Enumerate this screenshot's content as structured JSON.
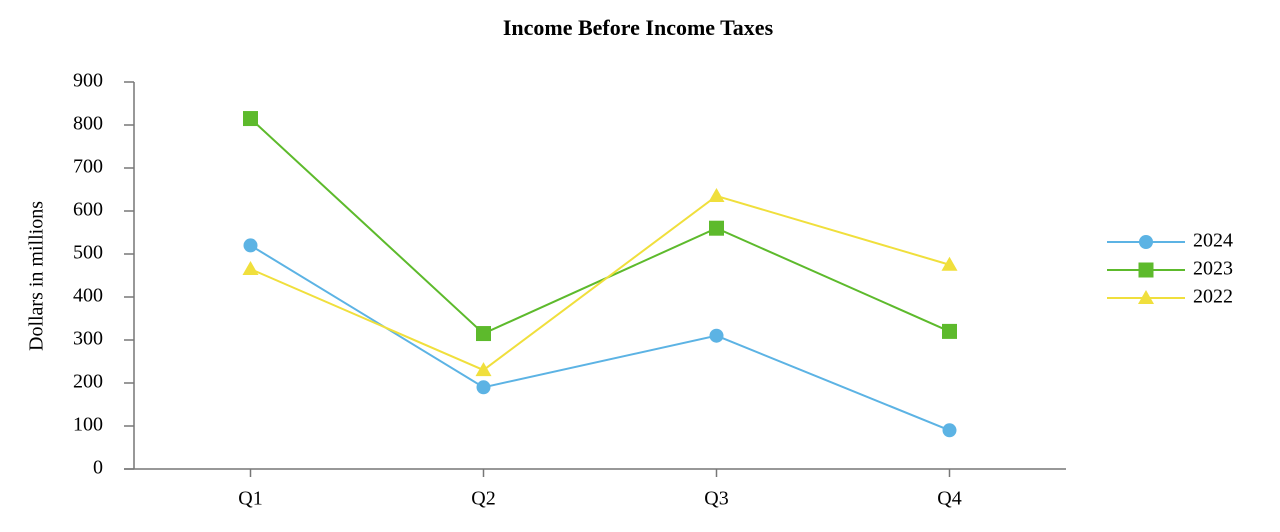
{
  "chart_data": {
    "type": "line",
    "title": "Income Before Income Taxes",
    "y_label": "Dollars in millions",
    "categories": [
      "Q1",
      "Q2",
      "Q3",
      "Q4"
    ],
    "series": [
      {
        "name": "2024",
        "color": "#5cb3e4",
        "marker": "circle",
        "values": [
          520,
          190,
          310,
          90
        ]
      },
      {
        "name": "2023",
        "color": "#5dba2c",
        "marker": "square",
        "values": [
          815,
          315,
          560,
          320
        ]
      },
      {
        "name": "2022",
        "color": "#f0df3c",
        "marker": "triangle",
        "values": [
          465,
          230,
          635,
          475
        ]
      }
    ],
    "ylim": [
      0,
      900
    ],
    "yticks": [
      0,
      100,
      200,
      300,
      400,
      500,
      600,
      700,
      800,
      900
    ],
    "legend": "right"
  }
}
